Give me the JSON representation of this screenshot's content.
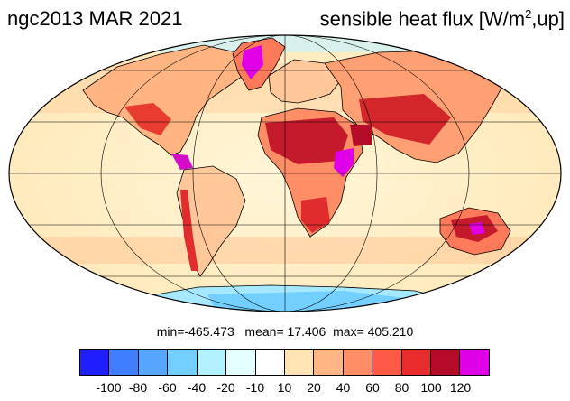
{
  "title": {
    "left": "ngc2013 MAR 2021",
    "right_prefix": "sensible heat flux [W/m",
    "right_sup": "2",
    "right_suffix": ",up]"
  },
  "stats": {
    "min_label": "min=",
    "min": "-465.473",
    "mean_label": "mean=",
    "mean": "17.406",
    "max_label": "max=",
    "max": "405.210"
  },
  "colorbar": {
    "colors": [
      "#1e1eff",
      "#3f7fff",
      "#56a6ff",
      "#73cfff",
      "#b2f2ff",
      "#e4ffff",
      "#ffffff",
      "#ffe3b2",
      "#ffb685",
      "#ff8e67",
      "#ff5a45",
      "#e82c2c",
      "#b40c28",
      "#e000e8"
    ],
    "labels": [
      "-100",
      "-80",
      "-60",
      "-40",
      "-20",
      "-10",
      "10",
      "20",
      "40",
      "60",
      "80",
      "100",
      "120"
    ]
  },
  "map": {
    "projection": "mollweide",
    "ocean_fill": "#fff2cf",
    "coastline_color": "#000000",
    "graticule_color": "#000000"
  }
}
